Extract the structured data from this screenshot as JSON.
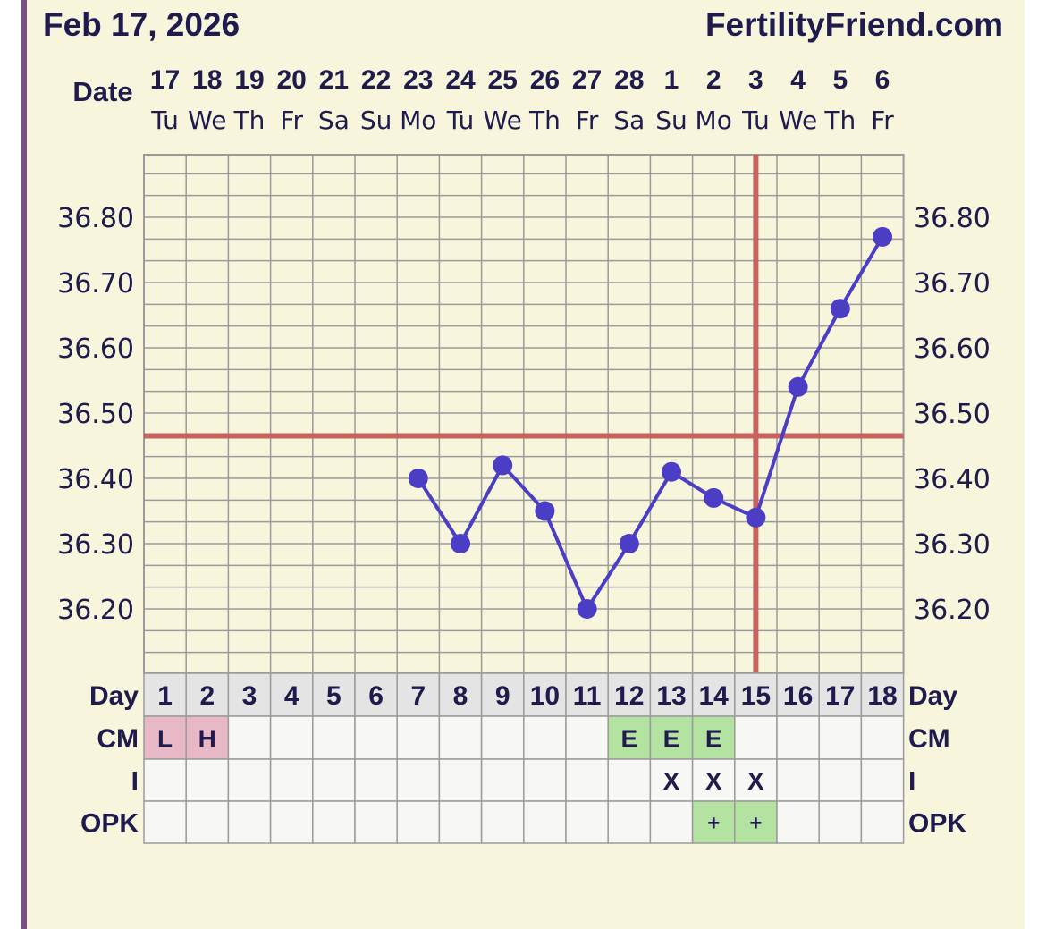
{
  "header": {
    "date": "Feb 17, 2026",
    "site": "FertilityFriend.com"
  },
  "labels": {
    "date": "Date",
    "day": "Day",
    "cm": "CM",
    "i": "I",
    "opk": "OPK"
  },
  "columns": {
    "dates": [
      "17",
      "18",
      "19",
      "20",
      "21",
      "22",
      "23",
      "24",
      "25",
      "26",
      "27",
      "28",
      "1",
      "2",
      "3",
      "4",
      "5",
      "6"
    ],
    "weekdays": [
      "Tu",
      "We",
      "Th",
      "Fr",
      "Sa",
      "Su",
      "Mo",
      "Tu",
      "We",
      "Th",
      "Fr",
      "Sa",
      "Su",
      "Mo",
      "Tu",
      "We",
      "Th",
      "Fr"
    ],
    "days": [
      "1",
      "2",
      "3",
      "4",
      "5",
      "6",
      "7",
      "8",
      "9",
      "10",
      "11",
      "12",
      "13",
      "14",
      "15",
      "16",
      "17",
      "18"
    ]
  },
  "rows": {
    "cm": [
      "L",
      "H",
      "",
      "",
      "",
      "",
      "",
      "",
      "",
      "",
      "",
      "E",
      "E",
      "E",
      "",
      "",
      "",
      ""
    ],
    "i": [
      "",
      "",
      "",
      "",
      "",
      "",
      "",
      "",
      "",
      "",
      "",
      "",
      "X",
      "X",
      "X",
      "",
      "",
      ""
    ],
    "opk": [
      "",
      "",
      "",
      "",
      "",
      "",
      "",
      "",
      "",
      "",
      "",
      "",
      "",
      "+",
      "+",
      "",
      "",
      ""
    ]
  },
  "colors": {
    "background": "#f7f5dc",
    "page_edge": "#7a4f82",
    "grid": "#9b9b9b",
    "line": "#4b3ec4",
    "coverline": "#c8625e",
    "menses": "#e9b8c6",
    "fertile": "#b3e2a1",
    "day_row": "#e4e4e4",
    "table_cell": "#f7f7f4",
    "text": "#1f1b4d"
  },
  "chart_data": {
    "type": "line",
    "x": [
      1,
      2,
      3,
      4,
      5,
      6,
      7,
      8,
      9,
      10,
      11,
      12,
      13,
      14,
      15,
      16,
      17,
      18
    ],
    "series": [
      {
        "values": [
          null,
          null,
          null,
          null,
          null,
          null,
          36.4,
          36.3,
          36.42,
          36.35,
          36.2,
          36.3,
          36.41,
          36.37,
          36.34,
          36.54,
          36.66,
          36.77
        ]
      }
    ],
    "y_ticks": [
      "36.80",
      "36.70",
      "36.60",
      "36.50",
      "36.40",
      "36.30",
      "36.20"
    ],
    "ylim": [
      36.12,
      36.9
    ],
    "coverline": 36.465,
    "ovulation_day": 15,
    "grid": true
  }
}
